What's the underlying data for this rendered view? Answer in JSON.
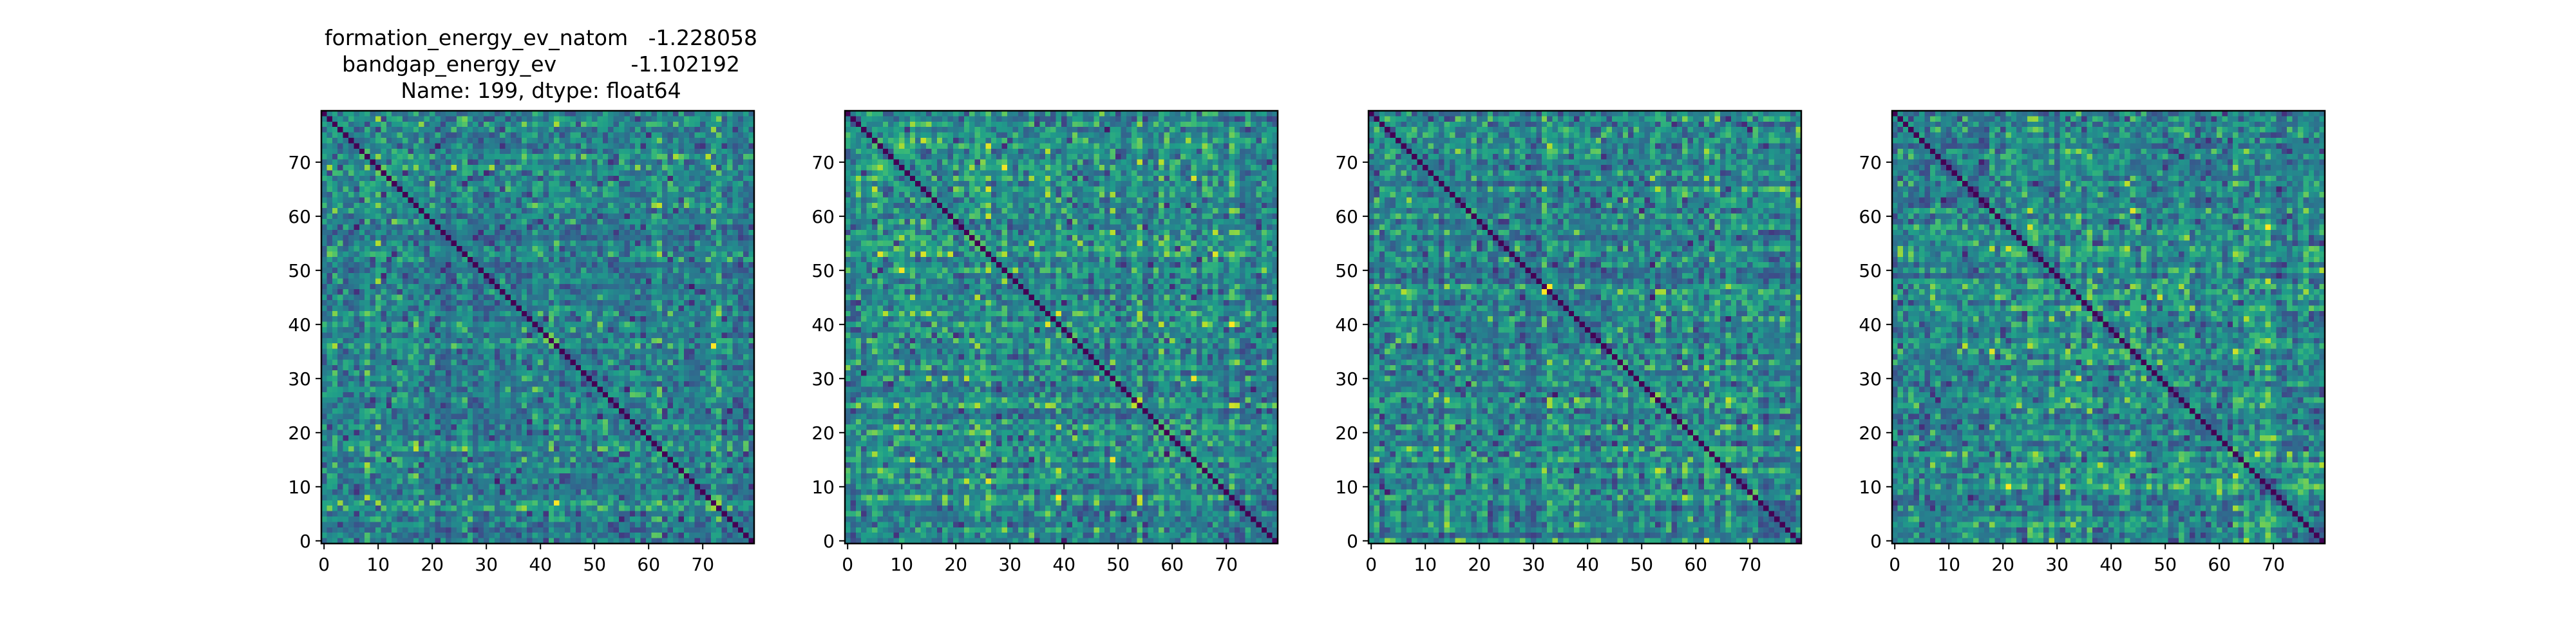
{
  "figure": {
    "title_lines": [
      "formation_energy_ev_natom   -1.228058",
      "bandgap_energy_ev           -1.102192",
      "Name: 199, dtype: float64"
    ]
  },
  "chart_data": [
    {
      "type": "heatmap",
      "panel": 1,
      "title": "formation_energy_ev_natom   -1.228058\nbandgap_energy_ev           -1.102192\nName: 199, dtype: float64",
      "colormap": "viridis",
      "matrix_size": 80,
      "diagonal_value": "minimum",
      "x_ticks": [
        "0",
        "10",
        "20",
        "30",
        "40",
        "50",
        "60",
        "70"
      ],
      "y_ticks": [
        "0",
        "10",
        "20",
        "30",
        "40",
        "50",
        "60",
        "70"
      ],
      "xlim": [
        -0.5,
        79.5
      ],
      "ylim": [
        79.5,
        -0.5
      ],
      "grid": false,
      "seed": 101
    },
    {
      "type": "heatmap",
      "panel": 2,
      "title": "",
      "colormap": "viridis",
      "matrix_size": 80,
      "diagonal_value": "minimum",
      "x_ticks": [
        "0",
        "10",
        "20",
        "30",
        "40",
        "50",
        "60",
        "70"
      ],
      "y_ticks": [
        "0",
        "10",
        "20",
        "30",
        "40",
        "50",
        "60",
        "70"
      ],
      "xlim": [
        -0.5,
        79.5
      ],
      "ylim": [
        79.5,
        -0.5
      ],
      "grid": false,
      "seed": 202
    },
    {
      "type": "heatmap",
      "panel": 3,
      "title": "",
      "colormap": "viridis",
      "matrix_size": 80,
      "diagonal_value": "minimum",
      "x_ticks": [
        "0",
        "10",
        "20",
        "30",
        "40",
        "50",
        "60",
        "70"
      ],
      "y_ticks": [
        "0",
        "10",
        "20",
        "30",
        "40",
        "50",
        "60",
        "70"
      ],
      "xlim": [
        -0.5,
        79.5
      ],
      "ylim": [
        79.5,
        -0.5
      ],
      "grid": false,
      "seed": 303
    },
    {
      "type": "heatmap",
      "panel": 4,
      "title": "",
      "colormap": "viridis",
      "matrix_size": 80,
      "diagonal_value": "minimum",
      "x_ticks": [
        "0",
        "10",
        "20",
        "30",
        "40",
        "50",
        "60",
        "70"
      ],
      "y_ticks": [
        "0",
        "10",
        "20",
        "30",
        "40",
        "50",
        "60",
        "70"
      ],
      "xlim": [
        -0.5,
        79.5
      ],
      "ylim": [
        79.5,
        -0.5
      ],
      "grid": false,
      "seed": 404
    }
  ]
}
